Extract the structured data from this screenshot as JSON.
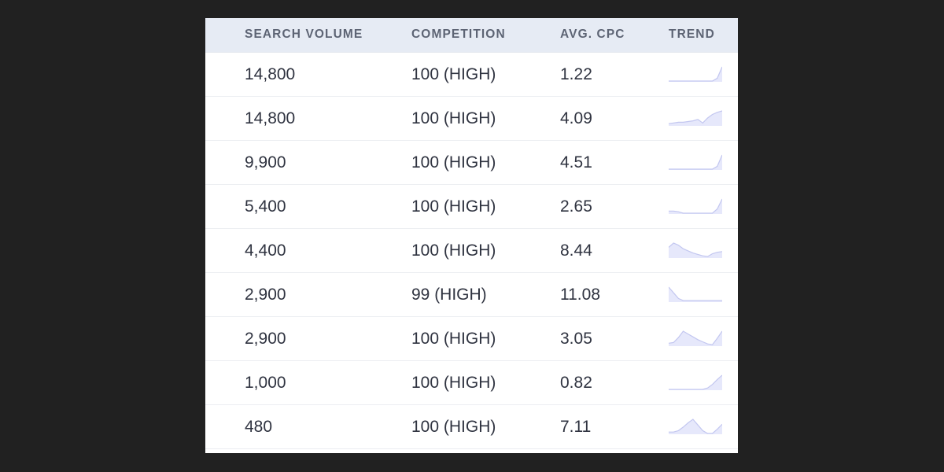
{
  "table": {
    "headers": {
      "search_volume": "SEARCH VOLUME",
      "competition": "COMPETITION",
      "avg_cpc": "AVG. CPC",
      "trend": "TREND"
    },
    "rows": [
      {
        "search_volume": "14,800",
        "competition": "100 (HIGH)",
        "avg_cpc": "1.22",
        "trend": [
          0,
          0,
          0,
          0,
          0,
          0,
          0,
          0,
          0,
          0,
          0.2,
          1
        ]
      },
      {
        "search_volume": "14,800",
        "competition": "100 (HIGH)",
        "avg_cpc": "4.09",
        "trend": [
          0.1,
          0.15,
          0.2,
          0.2,
          0.25,
          0.3,
          0.4,
          0.15,
          0.5,
          0.75,
          0.9,
          1
        ]
      },
      {
        "search_volume": "9,900",
        "competition": "100 (HIGH)",
        "avg_cpc": "4.51",
        "trend": [
          0,
          0,
          0,
          0,
          0,
          0,
          0,
          0,
          0,
          0,
          0.2,
          1
        ]
      },
      {
        "search_volume": "5,400",
        "competition": "100 (HIGH)",
        "avg_cpc": "2.65",
        "trend": [
          0.15,
          0.15,
          0.1,
          0,
          0,
          0,
          0,
          0,
          0,
          0,
          0.3,
          1
        ]
      },
      {
        "search_volume": "4,400",
        "competition": "100 (HIGH)",
        "avg_cpc": "8.44",
        "trend": [
          0.7,
          1,
          0.85,
          0.6,
          0.45,
          0.3,
          0.2,
          0.1,
          0.05,
          0.25,
          0.35,
          0.4
        ]
      },
      {
        "search_volume": "2,900",
        "competition": "99 (HIGH)",
        "avg_cpc": "11.08",
        "trend": [
          1,
          0.6,
          0.2,
          0.05,
          0.05,
          0.05,
          0.05,
          0.05,
          0.05,
          0.05,
          0.05,
          0.05
        ]
      },
      {
        "search_volume": "2,900",
        "competition": "100 (HIGH)",
        "avg_cpc": "3.05",
        "trend": [
          0.15,
          0.2,
          0.55,
          1,
          0.8,
          0.6,
          0.4,
          0.25,
          0.1,
          0.05,
          0.5,
          1
        ]
      },
      {
        "search_volume": "1,000",
        "competition": "100 (HIGH)",
        "avg_cpc": "0.82",
        "trend": [
          0,
          0,
          0,
          0,
          0,
          0,
          0,
          0,
          0.1,
          0.35,
          0.7,
          1
        ]
      },
      {
        "search_volume": "480",
        "competition": "100 (HIGH)",
        "avg_cpc": "7.11",
        "trend": [
          0.1,
          0.1,
          0.2,
          0.45,
          0.75,
          1,
          0.6,
          0.2,
          0,
          0,
          0.3,
          0.65
        ]
      }
    ]
  },
  "colors": {
    "page_background": "#212121",
    "header_background": "#e6ebf4",
    "header_text": "#5d6474",
    "cell_text": "#2f3340",
    "sparkline_fill": "#e6e8fb",
    "sparkline_stroke": "#c3c7f0"
  }
}
